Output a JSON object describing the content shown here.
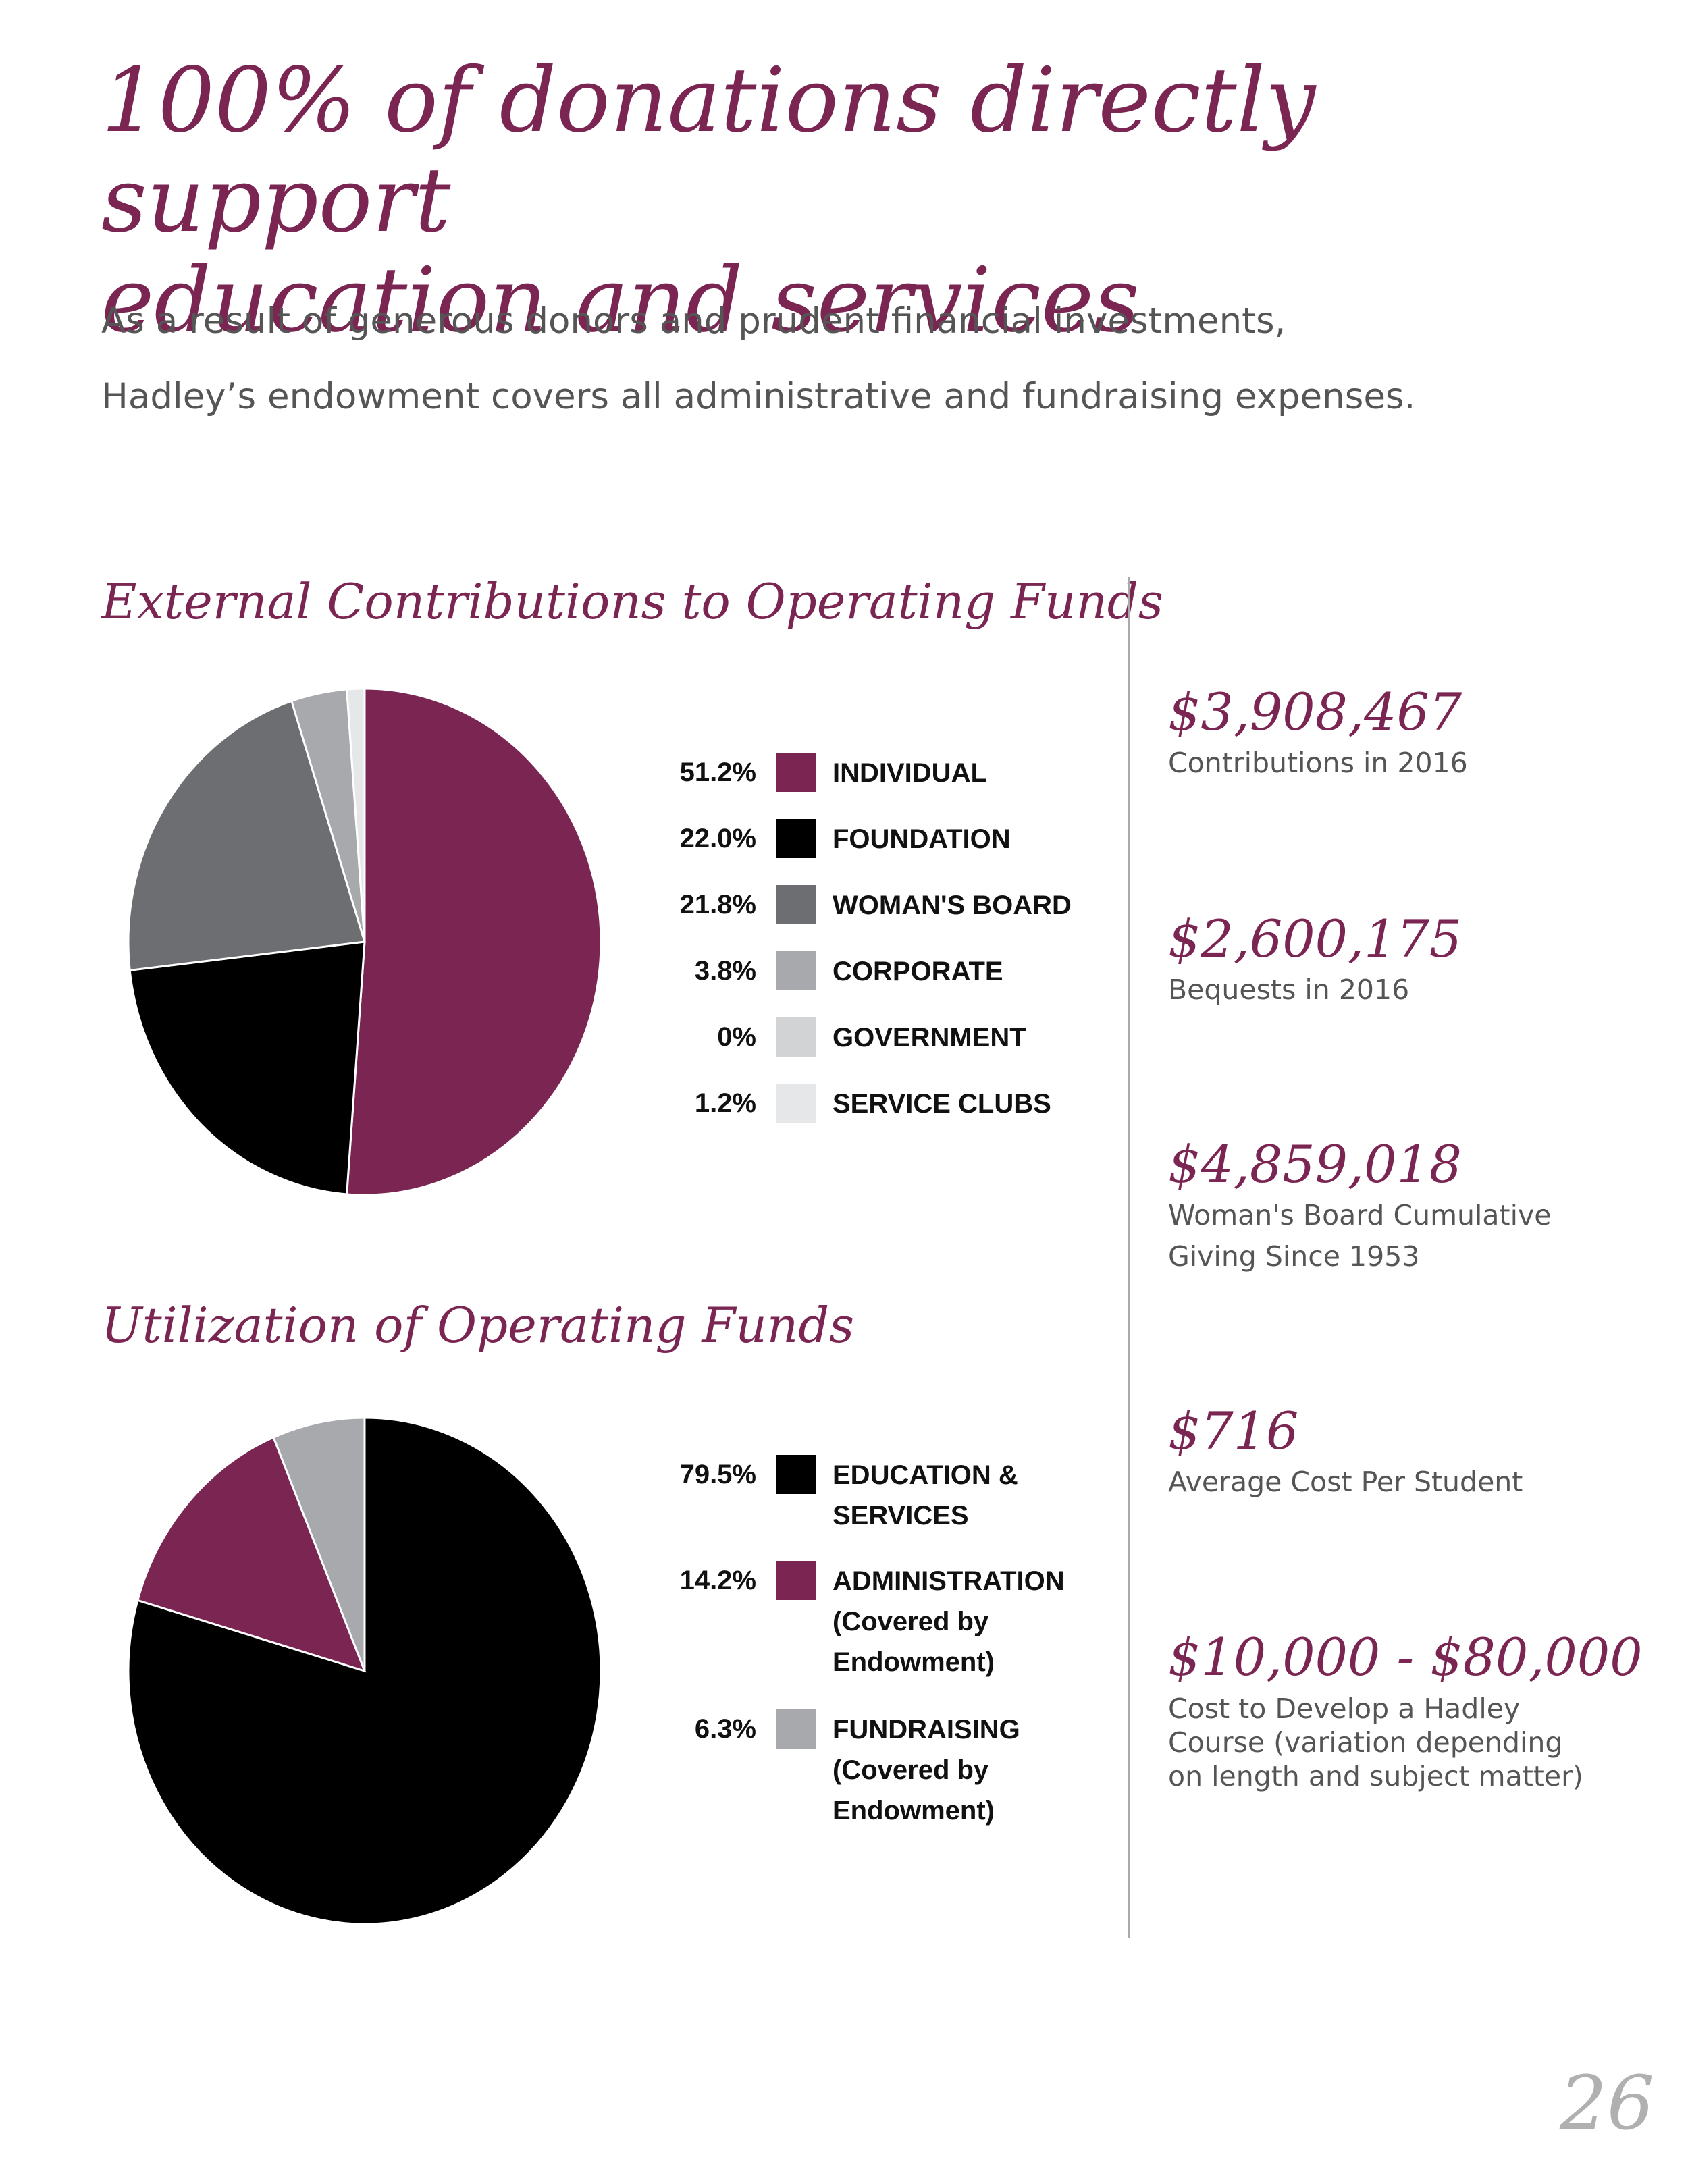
{
  "headline": {
    "line1": "100% of donations directly support",
    "line2": "education and services"
  },
  "intro": {
    "line1": "As a result of generous donors and prudent financial investments,",
    "line2": "Hadley’s endowment covers all administrative and fundraising expenses."
  },
  "chart_data": [
    {
      "type": "pie",
      "title": "External Contributions to Operating Funds",
      "categories": [
        "INDIVIDUAL",
        "FOUNDATION",
        "WOMAN'S BOARD",
        "CORPORATE",
        "GOVERNMENT",
        "SERVICE CLUBS"
      ],
      "values": [
        51.2,
        22.0,
        21.8,
        3.8,
        0,
        1.2
      ],
      "value_labels": [
        "51.2%",
        "22.0%",
        "21.8%",
        "3.8%",
        "0%",
        "1.2%"
      ],
      "colors": [
        "#7b2652",
        "#000000",
        "#6d6e71",
        "#a7a9ac",
        "#d1d3d4",
        "#e6e7e8"
      ],
      "legend": "right"
    },
    {
      "type": "pie",
      "title": "Utilization of Operating Funds",
      "categories": [
        "EDUCATION & SERVICES",
        "ADMINISTRATION (Covered by Endowment)",
        "FUNDRAISING (Covered by Endowment)"
      ],
      "label_lines": [
        [
          "EDUCATION &",
          "SERVICES"
        ],
        [
          "ADMINISTRATION",
          "(Covered by",
          "Endowment)"
        ],
        [
          "FUNDRAISING",
          "(Covered by",
          "Endowment)"
        ]
      ],
      "values": [
        79.5,
        14.2,
        6.3
      ],
      "value_labels": [
        "79.5%",
        "14.2%",
        "6.3%"
      ],
      "colors": [
        "#000000",
        "#7b2652",
        "#a7a9ac"
      ],
      "legend": "right"
    }
  ],
  "stats": [
    {
      "value": "$3,908,467",
      "caption": [
        "Contributions in 2016"
      ]
    },
    {
      "value": "$2,600,175",
      "caption": [
        "Bequests in 2016"
      ]
    },
    {
      "value": "$4,859,018",
      "caption": [
        "Woman's Board Cumulative",
        "Giving Since 1953"
      ]
    },
    {
      "value": "$716",
      "caption": [
        "Average Cost Per Student"
      ]
    },
    {
      "value": "$10,000 - $80,000",
      "caption": [
        "Cost to Develop a Hadley",
        "Course (variation depending",
        "on length and subject matter)"
      ]
    }
  ],
  "page_number": "26",
  "colors": {
    "accent": "#7b2652",
    "body_text": "#555555",
    "divider": "#aaaaaa"
  }
}
